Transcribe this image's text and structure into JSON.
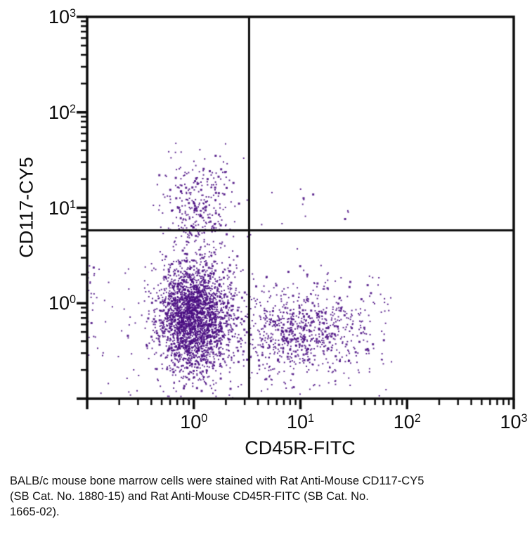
{
  "plot": {
    "x_axis_title": "CD45R-FITC",
    "y_axis_title": "CD117-CY5"
  },
  "caption": {
    "lines": [
      "BALB/c mouse bone marrow cells were stained with Rat Anti-Mouse CD117-CY5",
      "(SB Cat. No. 1880-15) and Rat Anti-Mouse CD45R-FITC (SB Cat. No.",
      "1665-02)."
    ]
  },
  "chart_data": {
    "type": "scatter",
    "subtype": "flow-cytometry-dot-plot",
    "title": "",
    "xlabel": "CD45R-FITC",
    "ylabel": "CD117-CY5",
    "x_scale": "log",
    "y_scale": "log",
    "xlim": [
      0.1,
      1000
    ],
    "ylim": [
      0.1,
      1000
    ],
    "grid": false,
    "legend": false,
    "log_base_label": "10",
    "tick_exponents": [
      0,
      1,
      2,
      3
    ],
    "x_tick_labels": [
      "10^0",
      "10^1",
      "10^2",
      "10^3"
    ],
    "y_tick_labels": [
      "10^0",
      "10^1",
      "10^2",
      "10^3"
    ],
    "quadrant_gate": {
      "x_value": 3.3,
      "y_value": 5.8
    },
    "point_color": "#4a0e82",
    "axis_color": "#0d0d0d",
    "clusters": [
      {
        "name": "cd117neg-cd45rneg-myeloid",
        "dist": "gaussian",
        "count": 2600,
        "cx": 0.0,
        "cy": -0.15,
        "sx": 0.17,
        "sy": 0.3
      },
      {
        "name": "cd117pos-progenitors",
        "dist": "gaussian",
        "count": 330,
        "cx": 0.04,
        "cy": 1.02,
        "sx": 0.17,
        "sy": 0.27,
        "ymax": 1.7
      },
      {
        "name": "cd45rpos-b-cells",
        "dist": "gaussian",
        "count": 780,
        "cx": 1.02,
        "cy": -0.27,
        "sx": 0.3,
        "sy": 0.24,
        "xmax": 1.92
      },
      {
        "name": "scattered-debris",
        "dist": "uniform",
        "count": 170,
        "x0": -1.0,
        "x1": 1.9,
        "y0": -0.98,
        "y1": 0.38
      },
      {
        "name": "left-edge-events",
        "dist": "uniform",
        "count": 16,
        "x0": -1.0,
        "x1": -0.93,
        "y0": -0.75,
        "y1": 0.4
      },
      {
        "name": "cd117pos-cd45rpos-rare",
        "dist": "uniform",
        "count": 12,
        "x0": 0.55,
        "x1": 1.5,
        "y0": 0.78,
        "y1": 1.28
      }
    ]
  }
}
